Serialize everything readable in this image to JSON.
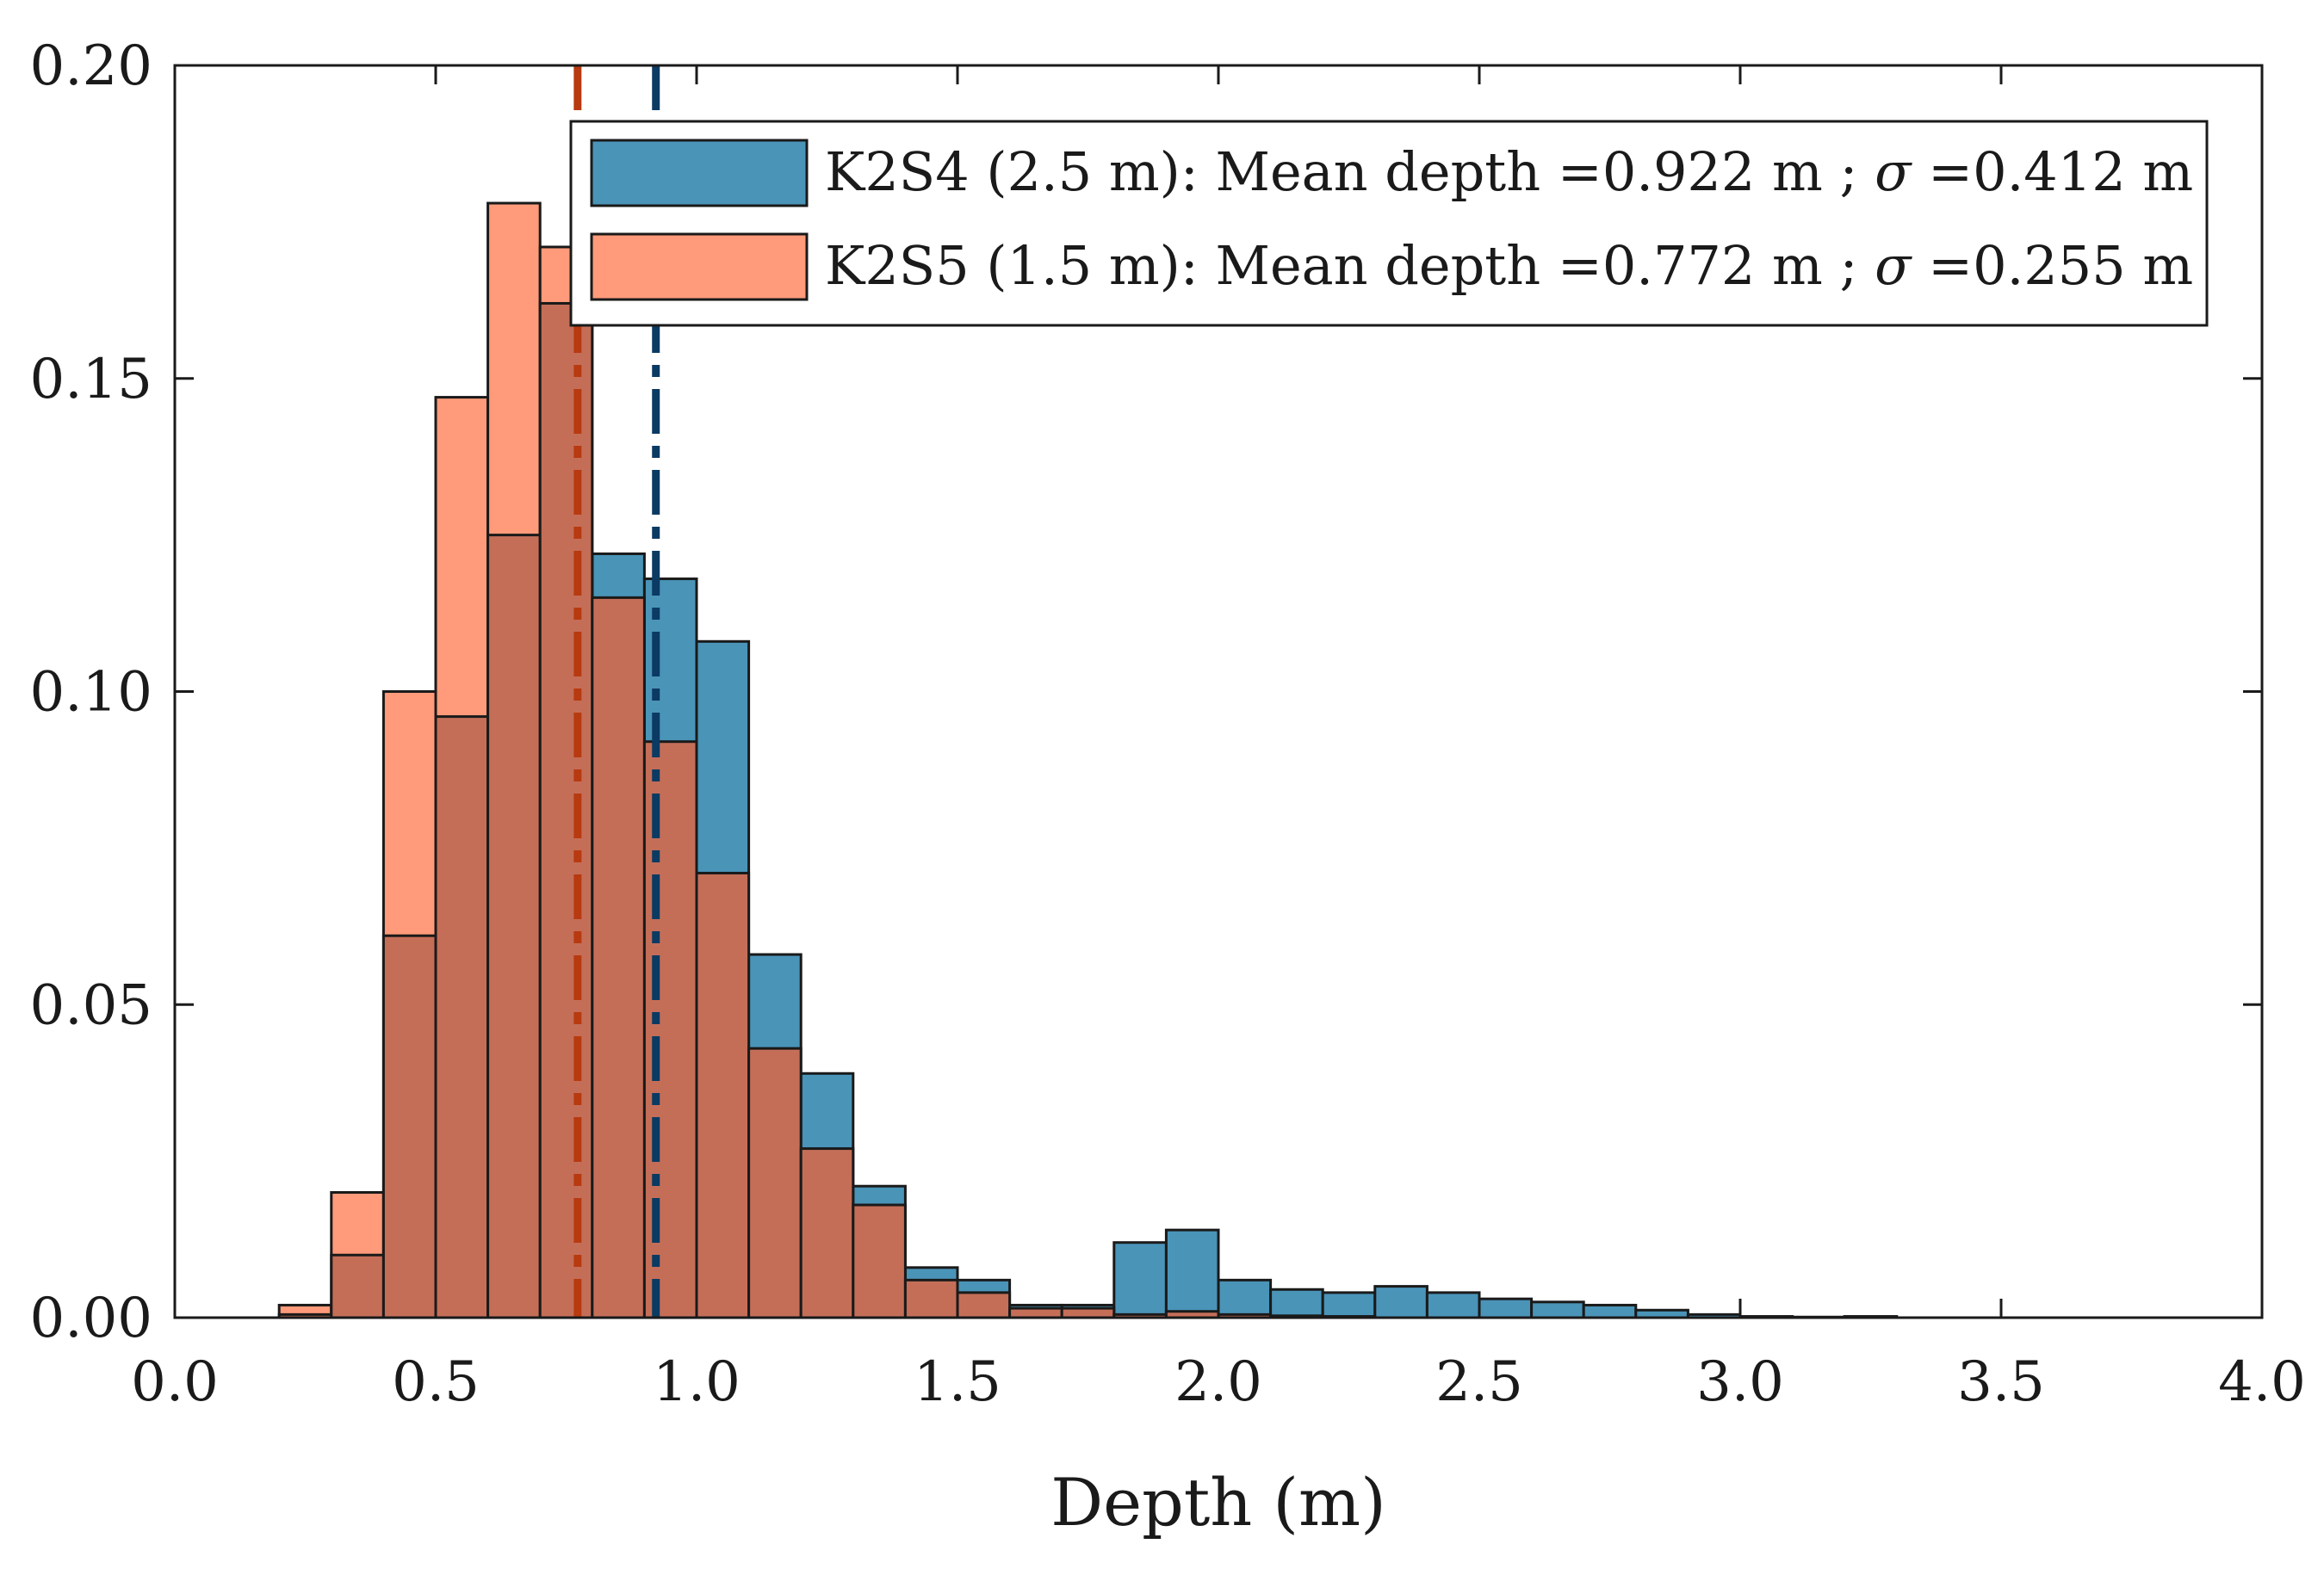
{
  "chart_data": {
    "type": "bar",
    "title": "",
    "xlabel": "Depth (m)",
    "ylabel": "",
    "xlim": [
      0.0,
      4.0
    ],
    "ylim": [
      0.0,
      0.2
    ],
    "xticks": [
      "0.0",
      "0.5",
      "1.0",
      "1.5",
      "2.0",
      "2.5",
      "3.0",
      "3.5",
      "4.0"
    ],
    "yticks": [
      "0.00",
      "0.05",
      "0.10",
      "0.15",
      "0.20"
    ],
    "grid": false,
    "legend_position": "top-right",
    "bin_width": 0.1,
    "bin_starts": [
      0.2,
      0.3,
      0.4,
      0.5,
      0.6,
      0.7,
      0.8,
      0.9,
      1.0,
      1.1,
      1.2,
      1.3,
      1.4,
      1.5,
      1.6,
      1.7,
      1.8,
      1.9,
      2.0,
      2.1,
      2.2,
      2.3,
      2.4,
      2.5,
      2.6,
      2.7,
      2.8,
      2.9,
      3.0,
      3.1,
      3.2
    ],
    "series": [
      {
        "name": "K2S4",
        "legend_prefix": "K2S4 (2.5 m): Mean depth =",
        "mean_text": "0.922",
        "sigma_text": "0.412",
        "mean": 0.922,
        "sigma": 0.412,
        "color": "#4a94b8",
        "mean_line_color": "#0b3a63",
        "values": [
          0.0005,
          0.01,
          0.061,
          0.096,
          0.125,
          0.162,
          0.122,
          0.118,
          0.108,
          0.058,
          0.039,
          0.021,
          0.008,
          0.006,
          0.002,
          0.002,
          0.012,
          0.014,
          0.006,
          0.0045,
          0.004,
          0.005,
          0.004,
          0.003,
          0.0025,
          0.002,
          0.0012,
          0.0005,
          0.0002,
          0.0001,
          0.0002
        ]
      },
      {
        "name": "K2S5",
        "legend_prefix": "K2S5 (1.5 m): Mean depth =",
        "mean_text": "0.772",
        "sigma_text": "0.255",
        "mean": 0.772,
        "sigma": 0.255,
        "color": "#ff9a7a",
        "mean_line_color": "#b83a10",
        "values": [
          0.002,
          0.02,
          0.1,
          0.147,
          0.178,
          0.171,
          0.115,
          0.092,
          0.071,
          0.043,
          0.027,
          0.018,
          0.006,
          0.004,
          0.0015,
          0.0015,
          0.0005,
          0.001,
          0.0005,
          0.0003,
          0.0002,
          0,
          0,
          0,
          0,
          0,
          0,
          0,
          0,
          0,
          0
        ]
      }
    ],
    "overlap_color": "#c46e58",
    "legend_unit": " m ; ",
    "legend_sigma_symbol": "σ",
    "legend_eq": " =",
    "legend_unit_end": " m"
  }
}
